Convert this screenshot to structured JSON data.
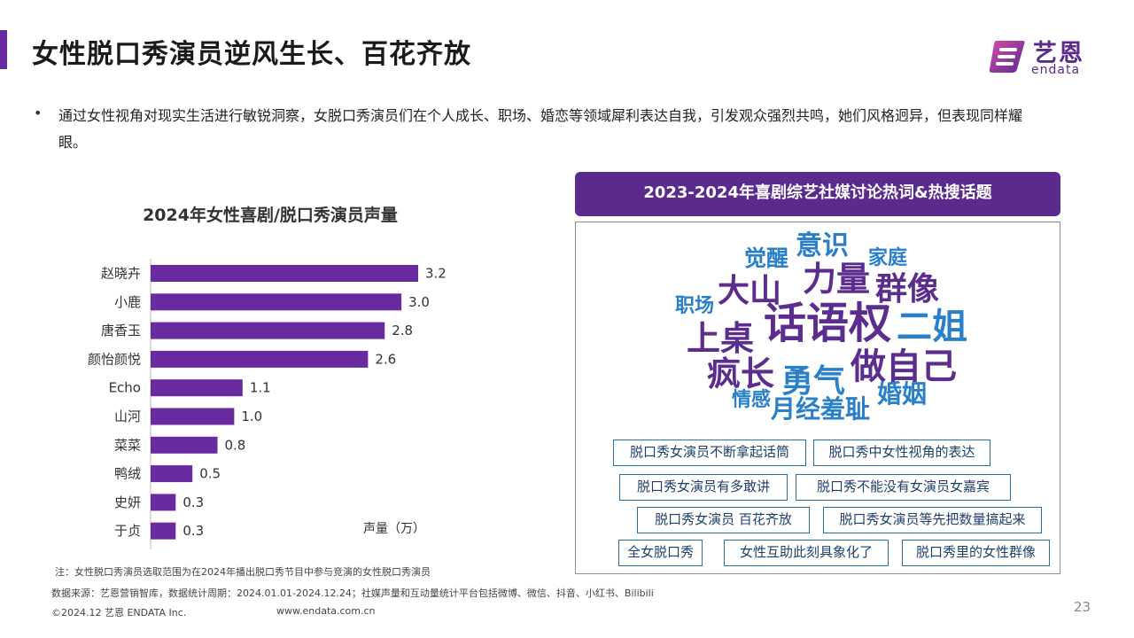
{
  "title": "女性脱口秀演员逆风生长、百花齐放",
  "logo": {
    "cn": "艺恩",
    "en": "endata"
  },
  "bullet": "•",
  "intro": "通过女性视角对现实生活进行敏锐洞察，女脱口秀演员们在个人成长、职场、婚恋等领域犀利表达自我，引发观众强烈共鸣，她们风格迥异，但表现同样耀眼。",
  "chart_data": {
    "type": "bar",
    "orientation": "horizontal",
    "title": "2024年女性喜剧/脱口秀演员声量",
    "categories": [
      "赵晓卉",
      "小鹿",
      "唐香玉",
      "颜怡颜悦",
      "Echo",
      "山河",
      "菜菜",
      "鸭绒",
      "史妍",
      "于贞"
    ],
    "values": [
      3.2,
      3.0,
      2.8,
      2.6,
      1.1,
      1.0,
      0.8,
      0.5,
      0.3,
      0.3
    ],
    "value_labels": [
      "3.2",
      "3.0",
      "2.8",
      "2.6",
      "1.1",
      "1.0",
      "0.8",
      "0.5",
      "0.3",
      "0.3"
    ],
    "unit_label": "声量（万）",
    "xlim": [
      0,
      3.2
    ],
    "grid": false,
    "bar_color": "#6a2aa0"
  },
  "wordcloud": {
    "banner": "2023-2024年喜剧综艺社媒讨论热词&热搜话题",
    "words": [
      {
        "text": "意识",
        "color": "#2a7fc9"
      },
      {
        "text": "觉醒",
        "color": "#2a7fc9"
      },
      {
        "text": "家庭",
        "color": "#2a7fc9"
      },
      {
        "text": "大山",
        "color": "#5b2d8e"
      },
      {
        "text": "力量",
        "color": "#5b2d8e"
      },
      {
        "text": "群像",
        "color": "#5b2d8e"
      },
      {
        "text": "职场",
        "color": "#2a7fc9"
      },
      {
        "text": "话语权",
        "color": "#5b2d8e"
      },
      {
        "text": "二姐",
        "color": "#2a7fc9"
      },
      {
        "text": "上桌",
        "color": "#5b2d8e"
      },
      {
        "text": "疯长",
        "color": "#5b2d8e"
      },
      {
        "text": "勇气",
        "color": "#2a7fc9"
      },
      {
        "text": "做自己",
        "color": "#5b2d8e"
      },
      {
        "text": "情感",
        "color": "#2a7fc9"
      },
      {
        "text": "婚姻",
        "color": "#2a7fc9"
      },
      {
        "text": "月经羞耻",
        "color": "#2a7fc9"
      }
    ],
    "topics": [
      "脱口秀女演员不断拿起话筒",
      "脱口秀中女性视角的表达",
      "脱口秀女演员有多敢讲",
      "脱口秀不能没有女演员女嘉宾",
      "脱口秀女演员 百花齐放",
      "脱口秀女演员等先把数量搞起来",
      "全女脱口秀",
      "女性互助此刻具象化了",
      "脱口秀里的女性群像"
    ]
  },
  "footer": {
    "note": "注：女性脱口秀演员选取范围为在2024年播出脱口秀节目中参与竞演的女性脱口秀演员",
    "source": "数据来源：艺恩营销智库，数据统计周期：2024.01.01-2024.12.24；社媒声量和互动量统计平台包括微博、微信、抖音、小红书、Bilibili",
    "copyright": "©2024.12 艺恩 ENDATA Inc.",
    "website": "www.endata.com.cn",
    "page": "23"
  }
}
